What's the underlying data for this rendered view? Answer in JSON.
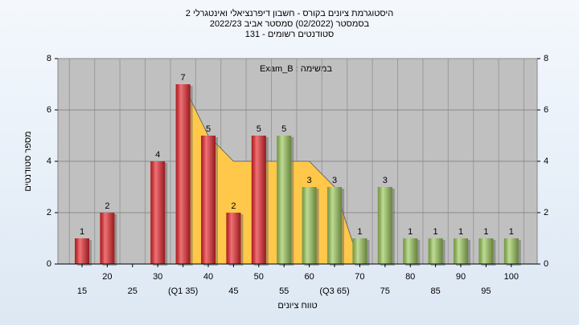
{
  "chart_data": {
    "type": "bar",
    "title": [
      "היסטוגרמת ציונים בקורס - חשבון דיפרנציאלי ואינטגרלי 2",
      "בסמסטר (02/2022)  סמסטר אביב 2022/23",
      "סטודנטים רשומים - 131"
    ],
    "annotation": "Exam_B : במשימה",
    "x_label": "טווח ציונים",
    "y_label": "מספר סטודנטים",
    "categories": [
      "15",
      "20",
      "25",
      "30",
      "(Q1 35)",
      "40",
      "45",
      "50",
      "55",
      "60",
      "(Q3 65)",
      "70",
      "75",
      "80",
      "85",
      "90",
      "95",
      "100"
    ],
    "values": [
      1,
      2,
      0,
      4,
      7,
      5,
      2,
      5,
      5,
      3,
      3,
      1,
      3,
      1,
      1,
      1,
      1,
      1
    ],
    "colors": [
      "#e8262b",
      "#e8262b",
      "#e8262b",
      "#e8262b",
      "#e8262b",
      "#e8262b",
      "#e8262b",
      "#e8262b",
      "#9cc95a",
      "#9cc95a",
      "#9cc95a",
      "#9cc95a",
      "#9cc95a",
      "#9cc95a",
      "#9cc95a",
      "#9cc95a",
      "#9cc95a",
      "#9cc95a"
    ],
    "area": {
      "color": "#ffc84a",
      "values": [
        null,
        null,
        null,
        null,
        7,
        5,
        4,
        4,
        4,
        4,
        3,
        0,
        null,
        null,
        null,
        null,
        null,
        null
      ]
    },
    "ylim": [
      0,
      8
    ],
    "yticks": [
      0,
      2,
      4,
      6,
      8
    ],
    "grid": true
  }
}
